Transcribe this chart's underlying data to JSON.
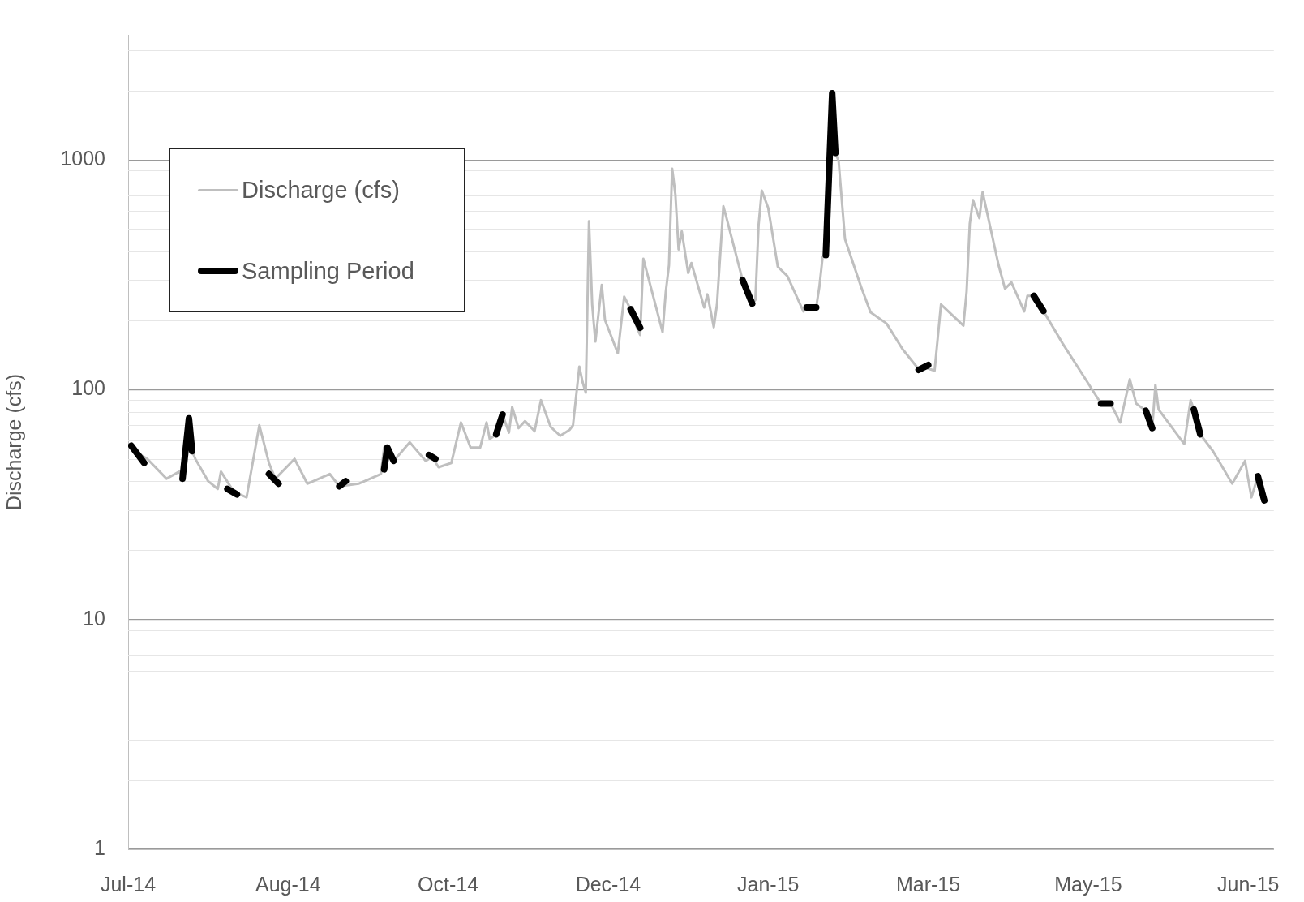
{
  "chart_data": {
    "type": "line",
    "ylabel": "Discharge (cfs)",
    "xlim": [
      "2014-07-08",
      "2015-07-01"
    ],
    "xticks": [
      {
        "value": "2014-07-08",
        "label": "Jul-14"
      },
      {
        "value": "2014-08-27",
        "label": "Aug-14"
      },
      {
        "value": "2014-10-16",
        "label": "Oct-14"
      },
      {
        "value": "2014-12-05",
        "label": "Dec-14"
      },
      {
        "value": "2015-01-24",
        "label": "Jan-15"
      },
      {
        "value": "2015-03-15",
        "label": "Mar-15"
      },
      {
        "value": "2015-05-04",
        "label": "May-15"
      },
      {
        "value": "2015-06-23",
        "label": "Jun-15"
      }
    ],
    "ylim": [
      1,
      3500
    ],
    "yticks": [
      1,
      10,
      100,
      1000
    ],
    "log": "y",
    "grid": "y",
    "legend": "top left",
    "series": [
      {
        "name": "Discharge (cfs)",
        "color": "#bfbfbf",
        "x": [
          "2014-07-10",
          "2014-07-14",
          "2014-07-20",
          "2014-07-24",
          "2014-07-25",
          "2014-07-27",
          "2014-07-28",
          "2014-07-29",
          "2014-08-02",
          "2014-08-05",
          "2014-08-06",
          "2014-08-10",
          "2014-08-14",
          "2014-08-18",
          "2014-08-21",
          "2014-08-23",
          "2014-08-29",
          "2014-09-02",
          "2014-09-09",
          "2014-09-12",
          "2014-09-18",
          "2014-09-25",
          "2014-09-26",
          "2014-09-29",
          "2014-10-04",
          "2014-10-09",
          "2014-10-11",
          "2014-10-13",
          "2014-10-17",
          "2014-10-20",
          "2014-10-23",
          "2014-10-26",
          "2014-10-28",
          "2014-10-29",
          "2014-10-31",
          "2014-11-02",
          "2014-11-04",
          "2014-11-05",
          "2014-11-07",
          "2014-11-09",
          "2014-11-12",
          "2014-11-14",
          "2014-11-17",
          "2014-11-20",
          "2014-11-23",
          "2014-11-24",
          "2014-11-26",
          "2014-11-27",
          "2014-11-28",
          "2014-11-29",
          "2014-11-30",
          "2014-12-01",
          "2014-12-03",
          "2014-12-04",
          "2014-12-08",
          "2014-12-10",
          "2014-12-12",
          "2014-12-14",
          "2014-12-15",
          "2014-12-16",
          "2014-12-22",
          "2014-12-23",
          "2014-12-24",
          "2014-12-25",
          "2014-12-26",
          "2014-12-27",
          "2014-12-28",
          "2014-12-30",
          "2014-12-31",
          "2015-01-04",
          "2015-01-05",
          "2015-01-07",
          "2015-01-08",
          "2015-01-10",
          "2015-01-11",
          "2015-01-16",
          "2015-01-19",
          "2015-01-20",
          "2015-01-21",
          "2015-01-22",
          "2015-01-24",
          "2015-01-27",
          "2015-01-30",
          "2015-02-04",
          "2015-02-05",
          "2015-02-08",
          "2015-02-09",
          "2015-02-10",
          "2015-02-11",
          "2015-02-13",
          "2015-02-14",
          "2015-02-15",
          "2015-02-17",
          "2015-02-22",
          "2015-02-25",
          "2015-03-02",
          "2015-03-07",
          "2015-03-12",
          "2015-03-14",
          "2015-03-17",
          "2015-03-19",
          "2015-03-26",
          "2015-03-27",
          "2015-03-28",
          "2015-03-29",
          "2015-03-31",
          "2015-04-01",
          "2015-04-06",
          "2015-04-08",
          "2015-04-10",
          "2015-04-14",
          "2015-04-15",
          "2015-04-17",
          "2015-04-20",
          "2015-04-26",
          "2015-05-03",
          "2015-05-08",
          "2015-05-11",
          "2015-05-14",
          "2015-05-17",
          "2015-05-19",
          "2015-05-22",
          "2015-05-24",
          "2015-05-25",
          "2015-05-26",
          "2015-06-03",
          "2015-06-05",
          "2015-06-06",
          "2015-06-08",
          "2015-06-12",
          "2015-06-18",
          "2015-06-22",
          "2015-06-24",
          "2015-06-26",
          "2015-06-28"
        ],
        "values": [
          54,
          50,
          41,
          44,
          41,
          75,
          54,
          50,
          40,
          37,
          44,
          36,
          34,
          70,
          48,
          41,
          50,
          39,
          43,
          38,
          39,
          43,
          56,
          49,
          59,
          49,
          51,
          46,
          48,
          72,
          56,
          56,
          72,
          61,
          64,
          78,
          65,
          84,
          68,
          73,
          66,
          90,
          69,
          63,
          67,
          70,
          126,
          108,
          97,
          541,
          235,
          162,
          286,
          201,
          144,
          254,
          224,
          186,
          173,
          371,
          178,
          267,
          348,
          916,
          707,
          408,
          489,
          322,
          356,
          228,
          260,
          187,
          235,
          628,
          558,
          300,
          237,
          246,
          520,
          735,
          618,
          343,
          312,
          219,
          228,
          228,
          281,
          377,
          385,
          1950,
          1072,
          991,
          452,
          281,
          217,
          194,
          150,
          123,
          125,
          121,
          235,
          190,
          267,
          528,
          668,
          558,
          724,
          348,
          275,
          293,
          219,
          256,
          256,
          220,
          159,
          112,
          87,
          87,
          72,
          111,
          87,
          81,
          68,
          105,
          82,
          58,
          90,
          82,
          64,
          54,
          39,
          49,
          34,
          42,
          33
        ]
      },
      {
        "name": "Sampling Period",
        "color": "#000000",
        "x": [
          "2014-07-09",
          "2014-07-13",
          "2014-07-19",
          "2014-07-25",
          "2014-07-27",
          "2014-07-28",
          "2014-08-03",
          "2014-08-08",
          "2014-08-11",
          "2014-08-16",
          "2014-08-21",
          "2014-08-24",
          "2014-09-03",
          "2014-09-12",
          "2014-09-14",
          "2014-09-20",
          "2014-09-26",
          "2014-09-27",
          "2014-09-29",
          "2014-10-05",
          "2014-10-10",
          "2014-10-12",
          "2014-10-22",
          "2014-10-31",
          "2014-11-02",
          "2014-11-20",
          "2014-12-12",
          "2014-12-15",
          "2015-01-01",
          "2015-01-16",
          "2015-01-19",
          "2015-01-28",
          "2015-02-05",
          "2015-02-08",
          "2015-02-10",
          "2015-02-11",
          "2015-02-13",
          "2015-02-14",
          "2015-02-28",
          "2015-03-12",
          "2015-03-15",
          "2015-04-01",
          "2015-04-17",
          "2015-04-20",
          "2015-04-30",
          "2015-05-08",
          "2015-05-11",
          "2015-05-16",
          "2015-05-22",
          "2015-05-24",
          "2015-05-30",
          "2015-06-06",
          "2015-06-08",
          "2015-06-17",
          "2015-06-26",
          "2015-06-28"
        ],
        "values": [
          57,
          48,
          null,
          41,
          75,
          54,
          null,
          37,
          35,
          null,
          43,
          39,
          null,
          38,
          40,
          null,
          45,
          56,
          49,
          null,
          52,
          50,
          null,
          64,
          78,
          null,
          224,
          186,
          null,
          300,
          237,
          null,
          228,
          228,
          null,
          385,
          1950,
          1072,
          null,
          122,
          128,
          null,
          256,
          220,
          null,
          87,
          87,
          null,
          81,
          68,
          null,
          82,
          64,
          null,
          42,
          33
        ]
      }
    ]
  }
}
